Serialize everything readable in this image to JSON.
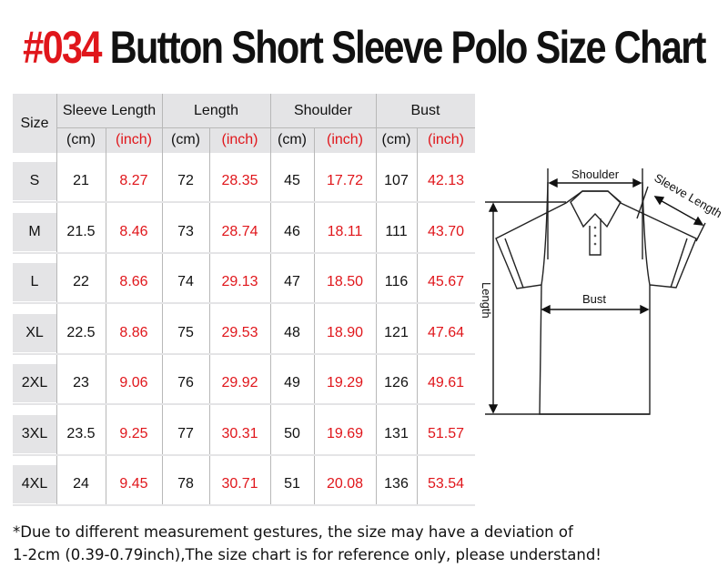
{
  "title": {
    "number": "#034",
    "text": "Button Short Sleeve Polo Size Chart"
  },
  "table": {
    "size_header": "Size",
    "groups": [
      "Sleeve Length",
      "Length",
      "Shoulder",
      "Bust"
    ],
    "units": [
      "(cm)",
      "(inch)"
    ],
    "rows": [
      [
        "S",
        "21",
        "8.27",
        "72",
        "28.35",
        "45",
        "17.72",
        "107",
        "42.13"
      ],
      [
        "M",
        "21.5",
        "8.46",
        "73",
        "28.74",
        "46",
        "18.11",
        "111",
        "43.70"
      ],
      [
        "L",
        "22",
        "8.66",
        "74",
        "29.13",
        "47",
        "18.50",
        "116",
        "45.67"
      ],
      [
        "XL",
        "22.5",
        "8.86",
        "75",
        "29.53",
        "48",
        "18.90",
        "121",
        "47.64"
      ],
      [
        "2XL",
        "23",
        "9.06",
        "76",
        "29.92",
        "49",
        "19.29",
        "126",
        "49.61"
      ],
      [
        "3XL",
        "23.5",
        "9.25",
        "77",
        "30.31",
        "50",
        "19.69",
        "131",
        "51.57"
      ],
      [
        "4XL",
        "24",
        "9.45",
        "78",
        "30.71",
        "51",
        "20.08",
        "136",
        "53.54"
      ]
    ]
  },
  "diagram": {
    "shoulder": "Shoulder",
    "sleeve_length": "Sleeve Length",
    "bust": "Bust",
    "length": "Length"
  },
  "note": {
    "line1": "*Due to different measurement gestures, the size may have a deviation of",
    "line2": "1-2cm (0.39-0.79inch),The size chart is for reference only, please understand!"
  },
  "colors": {
    "accent": "#e0161b",
    "header_bg": "#e4e4e6"
  }
}
